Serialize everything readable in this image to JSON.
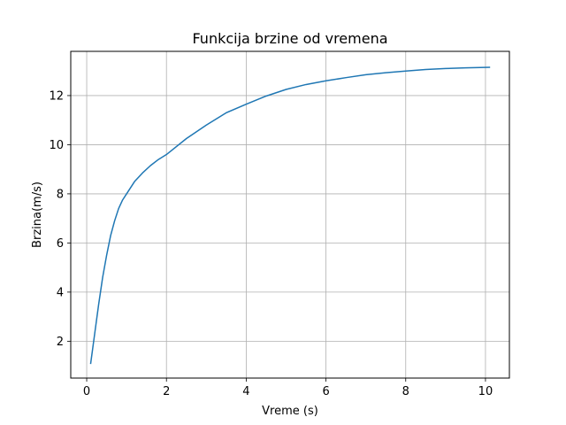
{
  "chart_data": {
    "type": "line",
    "title": "Funkcija brzine od vremena",
    "xlabel": "Vreme (s)",
    "ylabel": "Brzina(m/s)",
    "xlim": [
      -0.4,
      10.6
    ],
    "ylim": [
      0.5,
      13.8
    ],
    "grid": true,
    "xticks": [
      0,
      2,
      4,
      6,
      8,
      10
    ],
    "yticks": [
      2,
      4,
      6,
      8,
      10,
      12
    ],
    "line_color": "#1f77b4",
    "series": [
      {
        "x": [
          0.1,
          0.2,
          0.3,
          0.4,
          0.5,
          0.6,
          0.7,
          0.8,
          0.9,
          1.0,
          1.2,
          1.4,
          1.6,
          1.8,
          2.0,
          2.5,
          3.0,
          3.5,
          4.0,
          4.5,
          5.0,
          5.5,
          6.0,
          6.5,
          7.0,
          7.5,
          8.0,
          8.5,
          9.0,
          9.5,
          10.1
        ],
        "y": [
          1.1,
          2.3,
          3.5,
          4.6,
          5.5,
          6.3,
          6.9,
          7.4,
          7.75,
          8.0,
          8.5,
          8.85,
          9.15,
          9.4,
          9.6,
          10.25,
          10.8,
          11.3,
          11.65,
          11.98,
          12.25,
          12.45,
          12.6,
          12.73,
          12.85,
          12.93,
          13.0,
          13.06,
          13.1,
          13.13,
          13.15
        ]
      }
    ]
  }
}
